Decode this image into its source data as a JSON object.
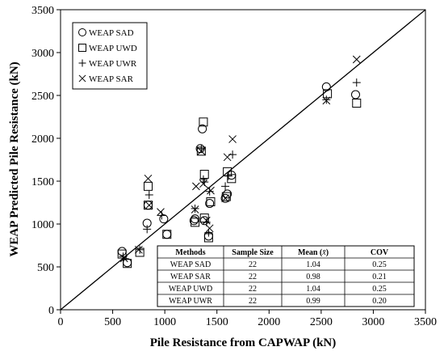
{
  "chart_data": {
    "type": "scatter",
    "title": "",
    "xlabel": "Pile Resistance from CAPWAP (kN)",
    "ylabel": "WEAP Predicted Pile Resistance (kN)",
    "xlim": [
      0,
      3500
    ],
    "ylim": [
      0,
      3500
    ],
    "xticks": [
      0,
      500,
      1000,
      1500,
      2000,
      2500,
      3000,
      3500
    ],
    "yticks": [
      0,
      500,
      1000,
      1500,
      2000,
      2500,
      3000,
      3500
    ],
    "xtick_labels": [
      "0",
      "500",
      "1000",
      "1500",
      "2000",
      "2500",
      "3000",
      "3500"
    ],
    "ytick_labels": [
      "0",
      "500",
      "1000",
      "1500",
      "2000",
      "2500",
      "3000",
      "3500"
    ],
    "grid": false,
    "legend_position": "top-left",
    "reference_line": {
      "x": [
        0,
        3500
      ],
      "y": [
        0,
        3500
      ]
    },
    "series": [
      {
        "name": "WEAP SAD",
        "marker": "circle",
        "points": [
          [
            590,
            680
          ],
          [
            640,
            550
          ],
          [
            830,
            1010
          ],
          [
            840,
            1220
          ],
          [
            990,
            1060
          ],
          [
            1020,
            880
          ],
          [
            1280,
            1040
          ],
          [
            1290,
            1060
          ],
          [
            1340,
            1880
          ],
          [
            1360,
            2110
          ],
          [
            1380,
            1040
          ],
          [
            1420,
            860
          ],
          [
            1430,
            1240
          ],
          [
            1580,
            1300
          ],
          [
            1600,
            1350
          ],
          [
            1640,
            1570
          ],
          [
            2550,
            2600
          ],
          [
            2830,
            2510
          ]
        ]
      },
      {
        "name": "WEAP UWD",
        "marker": "square",
        "points": [
          [
            590,
            650
          ],
          [
            640,
            540
          ],
          [
            760,
            670
          ],
          [
            840,
            1440
          ],
          [
            840,
            1220
          ],
          [
            1020,
            880
          ],
          [
            1290,
            1020
          ],
          [
            1350,
            1850
          ],
          [
            1370,
            2190
          ],
          [
            1380,
            1580
          ],
          [
            1380,
            1070
          ],
          [
            1420,
            840
          ],
          [
            1440,
            1260
          ],
          [
            1590,
            1320
          ],
          [
            1600,
            1610
          ],
          [
            1640,
            1530
          ],
          [
            2560,
            2520
          ],
          [
            2840,
            2410
          ]
        ]
      },
      {
        "name": "WEAP UWR",
        "marker": "plus",
        "points": [
          [
            600,
            620
          ],
          [
            760,
            700
          ],
          [
            830,
            940
          ],
          [
            850,
            1340
          ],
          [
            970,
            1100
          ],
          [
            1290,
            1180
          ],
          [
            1350,
            1880
          ],
          [
            1370,
            1520
          ],
          [
            1380,
            1490
          ],
          [
            1400,
            1020
          ],
          [
            1420,
            900
          ],
          [
            1430,
            1380
          ],
          [
            1580,
            1440
          ],
          [
            1610,
            1560
          ],
          [
            1650,
            1810
          ],
          [
            2550,
            2450
          ],
          [
            2840,
            2650
          ]
        ]
      },
      {
        "name": "WEAP SAR",
        "marker": "x",
        "points": [
          [
            610,
            600
          ],
          [
            750,
            700
          ],
          [
            840,
            1530
          ],
          [
            850,
            1220
          ],
          [
            960,
            1140
          ],
          [
            1300,
            1440
          ],
          [
            1290,
            1170
          ],
          [
            1350,
            1850
          ],
          [
            1370,
            1470
          ],
          [
            1400,
            1040
          ],
          [
            1430,
            950
          ],
          [
            1440,
            1390
          ],
          [
            1580,
            1300
          ],
          [
            1600,
            1780
          ],
          [
            1650,
            1990
          ],
          [
            2550,
            2440
          ],
          [
            2840,
            2920
          ]
        ]
      }
    ],
    "table": {
      "headers": [
        "Methods",
        "Sample Size",
        "Mean ($\\bar{x}$)",
        "COV"
      ],
      "mean_header_text": "Mean (",
      "mean_symbol": "x̄",
      "mean_header_close": ")",
      "rows": [
        [
          "WEAP SAD",
          "22",
          "1.04",
          "0.25"
        ],
        [
          "WEAP SAR",
          "22",
          "0.98",
          "0.21"
        ],
        [
          "WEAP UWD",
          "22",
          "1.04",
          "0.25"
        ],
        [
          "WEAP UWR",
          "22",
          "0.99",
          "0.20"
        ]
      ]
    }
  }
}
